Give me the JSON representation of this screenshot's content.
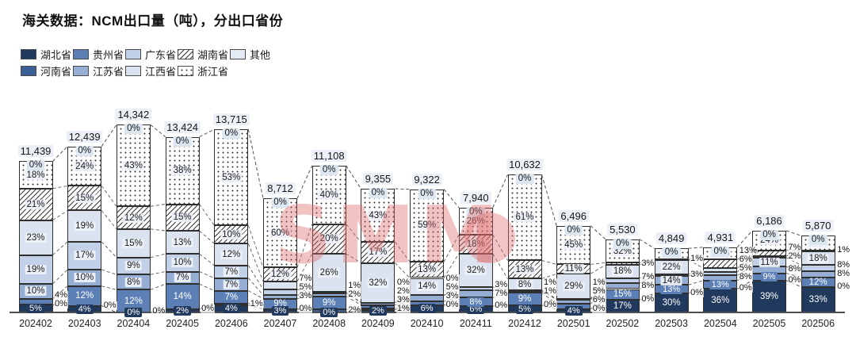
{
  "header": {
    "title": "海关数据：NCM出口量（吨），分出口省份"
  },
  "watermark": {
    "text": "SMM",
    "color": "#DE6868"
  },
  "legend": {
    "position": "top-left",
    "order": [
      "hubei",
      "guizhou",
      "guangdong",
      "hunan",
      "other",
      "henan",
      "jiangsu",
      "jiangxi",
      "zhejiang"
    ]
  },
  "chart_data": {
    "type": "bar",
    "subtype": "stacked-percent-with-totals",
    "title": "海关数据：NCM出口量（吨），分出口省份",
    "unit": "吨",
    "grid": false,
    "value_labels": "percent",
    "categories": [
      "202402",
      "202403",
      "202404",
      "202405",
      "202406",
      "202407",
      "202408",
      "202409",
      "202410",
      "202411",
      "202412",
      "202501",
      "202502",
      "202503",
      "202504",
      "202505",
      "202506"
    ],
    "totals": [
      11439,
      12439,
      14342,
      13424,
      13715,
      8712,
      11108,
      9355,
      9322,
      7940,
      10632,
      6496,
      5530,
      4849,
      4931,
      6186,
      5870
    ],
    "stack_order": "bottom_to_top",
    "series": [
      {
        "key": "hubei",
        "name": "湖北省",
        "color": "#20395C",
        "text": "light",
        "values": [
          5,
          4,
          0,
          2,
          4,
          3,
          0,
          2,
          6,
          6,
          5,
          4,
          17,
          30,
          36,
          39,
          33
        ]
      },
      {
        "key": "henan",
        "name": "河南省",
        "color": "#3B5F95",
        "text": "light",
        "values": [
          0,
          0,
          0,
          0,
          1,
          0,
          2,
          1,
          0,
          0,
          0,
          0,
          0,
          0,
          0,
          0,
          0
        ]
      },
      {
        "key": "guizhou",
        "name": "贵州省",
        "color": "#5C80B6",
        "text": "light",
        "values": [
          4,
          12,
          12,
          14,
          7,
          9,
          9,
          3,
          3,
          8,
          9,
          6,
          15,
          13,
          13,
          9,
          12
        ]
      },
      {
        "key": "jiangsu",
        "name": "江苏省",
        "color": "#96AED4",
        "text": "dark",
        "values": [
          10,
          10,
          8,
          7,
          7,
          3,
          2,
          2,
          5,
          7,
          1,
          5,
          8,
          14,
          8,
          8,
          8
        ]
      },
      {
        "key": "guangdong",
        "name": "广东省",
        "color": "#C3D1E8",
        "text": "dark",
        "values": [
          19,
          17,
          9,
          10,
          7,
          5,
          1,
          0,
          0,
          3,
          1,
          1,
          7,
          3,
          5,
          11,
          8
        ]
      },
      {
        "key": "jiangxi",
        "name": "江西省",
        "color": "#DBE3F1",
        "text": "dark",
        "values": [
          23,
          19,
          15,
          13,
          12,
          7,
          26,
          32,
          14,
          32,
          8,
          29,
          18,
          22,
          6,
          2,
          18
        ]
      },
      {
        "key": "hunan",
        "name": "湖南省",
        "pattern": "hatch",
        "color": "#ffffff",
        "text": "dark",
        "values": [
          21,
          15,
          12,
          15,
          10,
          12,
          20,
          17,
          13,
          18,
          13,
          11,
          3,
          1,
          13,
          7,
          1
        ]
      },
      {
        "key": "zhejiang",
        "name": "浙江省",
        "pattern": "dots",
        "color": "#ffffff",
        "text": "dark",
        "values": [
          18,
          24,
          43,
          38,
          53,
          60,
          40,
          43,
          59,
          26,
          61,
          45,
          32,
          17,
          19,
          24,
          19
        ]
      },
      {
        "key": "other",
        "name": "其他",
        "color": "#E4EBF4",
        "text": "dark",
        "values": [
          0,
          0,
          0,
          0,
          0,
          0,
          0,
          0,
          0,
          0,
          0,
          0,
          0,
          0,
          0,
          0,
          0
        ]
      }
    ],
    "axis": {
      "x_labels_same_as_categories": true,
      "baseline": true,
      "y_axis_shown": false
    },
    "connector_lines": "dashed between adjacent bar segment boundaries"
  }
}
